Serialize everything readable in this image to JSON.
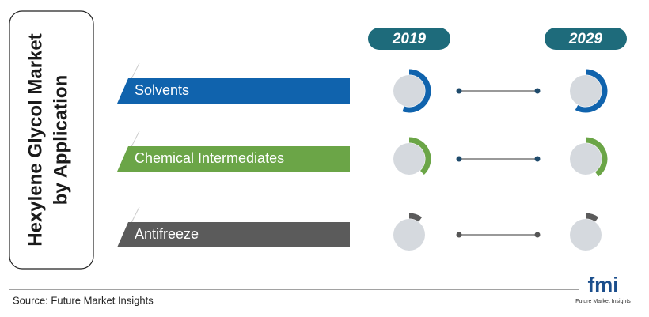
{
  "title": [
    "Hexylene Glycol Market",
    "by Application"
  ],
  "years": [
    "2019",
    "2029"
  ],
  "year_color": "#1e6b7b",
  "rows": [
    {
      "label": "Solvents",
      "color": "#1063ad",
      "shares": [
        55,
        58
      ]
    },
    {
      "label": "Chemical Intermediates",
      "color": "#6ba547",
      "shares": [
        38,
        40
      ]
    },
    {
      "label": "Antifreeze",
      "color": "#5b5b5b",
      "shares": [
        10,
        10
      ]
    }
  ],
  "source": "Source: Future Market Insights",
  "logo": {
    "mark": "fmi",
    "name": "Future Market Insights"
  }
}
